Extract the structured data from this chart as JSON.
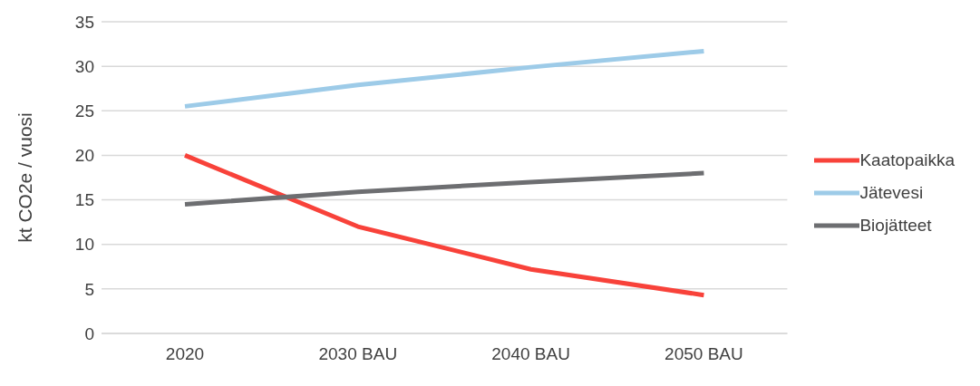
{
  "chart_data": {
    "type": "line",
    "ylabel": "kt CO2e / vuosi",
    "categories": [
      "2020",
      "2030 BAU",
      "2040 BAU",
      "2050 BAU"
    ],
    "series": [
      {
        "name": "Kaatopaikka",
        "color": "#f8423a",
        "values": [
          20,
          12,
          7.2,
          4.3
        ]
      },
      {
        "name": "Jätevesi",
        "color": "#9dcbe8",
        "values": [
          25.5,
          27.9,
          29.9,
          31.7
        ]
      },
      {
        "name": "Biojätteet",
        "color": "#6d6e71",
        "values": [
          14.5,
          15.9,
          17,
          18
        ]
      }
    ],
    "ylim": [
      0,
      35
    ],
    "yticks": [
      0,
      5,
      10,
      15,
      20,
      25,
      30,
      35
    ],
    "grid": "y",
    "legend": "right",
    "marker": "none",
    "line_style": "solid"
  }
}
